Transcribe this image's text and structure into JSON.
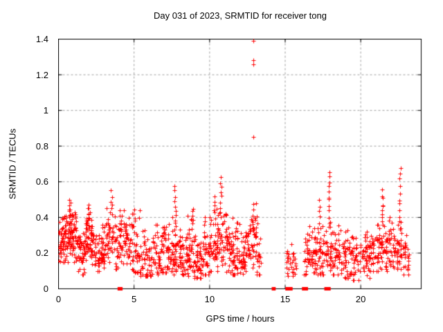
{
  "chart_data": {
    "type": "scatter",
    "title": "Day 031 of 2023, SRMTID for receiver tong",
    "xlabel": "GPS time / hours",
    "ylabel": "SRMTID / TECUs",
    "series_name": "SRMTID",
    "xlim": [
      0,
      24
    ],
    "ylim": [
      0,
      1.4
    ],
    "xticks": [
      0,
      5,
      10,
      15,
      20
    ],
    "xtick_labels": [
      "0",
      "5",
      "10",
      "15",
      "20"
    ],
    "yticks": [
      0,
      0.2,
      0.4,
      0.6,
      0.8,
      1,
      1.2,
      1.4
    ],
    "ytick_labels": [
      "0",
      "0.2",
      "0.4",
      "0.6",
      "0.8",
      "1",
      "1.2",
      "1.4"
    ],
    "grid": true,
    "grid_color": "#9e9e9e",
    "axis_color": "#000000",
    "marker": {
      "shape": "plus",
      "color": "#ff0000",
      "size": 7
    },
    "seed": 31,
    "segments_format": "[x_start_hours, x_end_hours, n_points, y_min, y_max, y_center]",
    "segments": [
      [
        0.0,
        0.3,
        30,
        0.13,
        0.42,
        0.25
      ],
      [
        0.3,
        0.6,
        34,
        0.15,
        0.47,
        0.3
      ],
      [
        0.6,
        0.9,
        38,
        0.17,
        0.5,
        0.33
      ],
      [
        0.9,
        1.2,
        34,
        0.15,
        0.48,
        0.3
      ],
      [
        1.2,
        1.5,
        28,
        0.1,
        0.36,
        0.22
      ],
      [
        1.5,
        1.8,
        28,
        0.08,
        0.32,
        0.18
      ],
      [
        1.8,
        2.1,
        32,
        0.12,
        0.45,
        0.28
      ],
      [
        2.1,
        2.4,
        30,
        0.11,
        0.4,
        0.26
      ],
      [
        2.4,
        2.7,
        26,
        0.1,
        0.33,
        0.2
      ],
      [
        2.7,
        3.0,
        26,
        0.12,
        0.36,
        0.22
      ],
      [
        3.0,
        3.3,
        24,
        0.14,
        0.45,
        0.27
      ],
      [
        3.3,
        3.6,
        20,
        0.14,
        0.48,
        0.28
      ],
      [
        3.6,
        3.9,
        20,
        0.11,
        0.42,
        0.25
      ],
      [
        3.9,
        4.2,
        26,
        0.12,
        0.48,
        0.28
      ],
      [
        4.2,
        4.6,
        30,
        0.14,
        0.45,
        0.28
      ],
      [
        4.6,
        5.0,
        30,
        0.1,
        0.42,
        0.24
      ],
      [
        5.0,
        5.4,
        28,
        0.09,
        0.45,
        0.22
      ],
      [
        5.4,
        5.8,
        24,
        0.07,
        0.4,
        0.18
      ],
      [
        5.8,
        6.2,
        26,
        0.07,
        0.35,
        0.17
      ],
      [
        6.2,
        6.7,
        34,
        0.08,
        0.36,
        0.19
      ],
      [
        6.7,
        7.2,
        36,
        0.09,
        0.4,
        0.21
      ],
      [
        7.2,
        7.6,
        30,
        0.1,
        0.4,
        0.21
      ],
      [
        7.6,
        8.0,
        32,
        0.08,
        0.36,
        0.2
      ],
      [
        8.0,
        8.5,
        40,
        0.08,
        0.35,
        0.19
      ],
      [
        8.5,
        9.0,
        42,
        0.07,
        0.42,
        0.2
      ],
      [
        9.0,
        9.5,
        42,
        0.06,
        0.35,
        0.18
      ],
      [
        9.5,
        10.0,
        40,
        0.08,
        0.42,
        0.21
      ],
      [
        10.0,
        10.5,
        38,
        0.1,
        0.48,
        0.24
      ],
      [
        10.5,
        11.0,
        34,
        0.1,
        0.45,
        0.26
      ],
      [
        11.0,
        11.5,
        40,
        0.09,
        0.42,
        0.24
      ],
      [
        11.5,
        12.0,
        44,
        0.08,
        0.4,
        0.21
      ],
      [
        12.0,
        12.35,
        30,
        0.08,
        0.36,
        0.2
      ],
      [
        12.35,
        12.7,
        28,
        0.1,
        0.44,
        0.24
      ],
      [
        12.7,
        13.1,
        28,
        0.12,
        0.45,
        0.27
      ],
      [
        13.1,
        13.4,
        18,
        0.08,
        0.3,
        0.17
      ],
      [
        15.05,
        15.75,
        30,
        0.07,
        0.25,
        0.14
      ],
      [
        16.25,
        16.7,
        30,
        0.08,
        0.35,
        0.18
      ],
      [
        16.7,
        17.1,
        34,
        0.09,
        0.38,
        0.2
      ],
      [
        17.1,
        17.6,
        36,
        0.08,
        0.42,
        0.21
      ],
      [
        17.6,
        18.1,
        34,
        0.09,
        0.38,
        0.21
      ],
      [
        18.1,
        18.7,
        38,
        0.08,
        0.36,
        0.19
      ],
      [
        18.7,
        19.3,
        40,
        0.06,
        0.34,
        0.17
      ],
      [
        19.3,
        20.0,
        42,
        0.05,
        0.3,
        0.16
      ],
      [
        20.0,
        20.6,
        40,
        0.06,
        0.32,
        0.18
      ],
      [
        20.6,
        21.2,
        42,
        0.1,
        0.36,
        0.21
      ],
      [
        21.2,
        21.7,
        36,
        0.11,
        0.4,
        0.23
      ],
      [
        21.7,
        22.3,
        42,
        0.1,
        0.4,
        0.22
      ],
      [
        22.3,
        22.8,
        36,
        0.11,
        0.42,
        0.24
      ],
      [
        22.8,
        23.2,
        24,
        0.08,
        0.3,
        0.17
      ]
    ],
    "spikes_format": "[x_hours, n_points, y_low, y_high] - narrow vertical point columns",
    "spikes": [
      [
        0.75,
        5,
        0.42,
        0.5
      ],
      [
        1.95,
        4,
        0.4,
        0.47
      ],
      [
        3.5,
        5,
        0.42,
        0.56
      ],
      [
        7.7,
        10,
        0.34,
        0.57
      ],
      [
        8.85,
        5,
        0.36,
        0.45
      ],
      [
        10.35,
        6,
        0.4,
        0.52
      ],
      [
        10.75,
        9,
        0.4,
        0.62
      ],
      [
        12.9,
        6,
        0.3,
        0.47
      ],
      [
        13.12,
        4,
        0.3,
        0.47
      ],
      [
        17.25,
        4,
        0.4,
        0.5
      ],
      [
        17.9,
        12,
        0.35,
        0.66
      ],
      [
        21.45,
        9,
        0.36,
        0.55
      ],
      [
        22.6,
        11,
        0.33,
        0.68
      ]
    ],
    "outliers_format": "[x_hours, y_TECUs]",
    "outliers": [
      [
        12.89,
        1.39
      ],
      [
        12.89,
        1.28
      ],
      [
        12.89,
        1.26
      ],
      [
        12.89,
        0.85
      ]
    ],
    "zero_marks_format": "[x_start_hours, x_end_hours] - solid red marks on the y=0 axis line",
    "zero_marks": [
      [
        4.0,
        4.15
      ],
      [
        14.2,
        14.28
      ],
      [
        15.1,
        15.4
      ],
      [
        16.2,
        16.42
      ],
      [
        17.68,
        17.92
      ]
    ]
  }
}
